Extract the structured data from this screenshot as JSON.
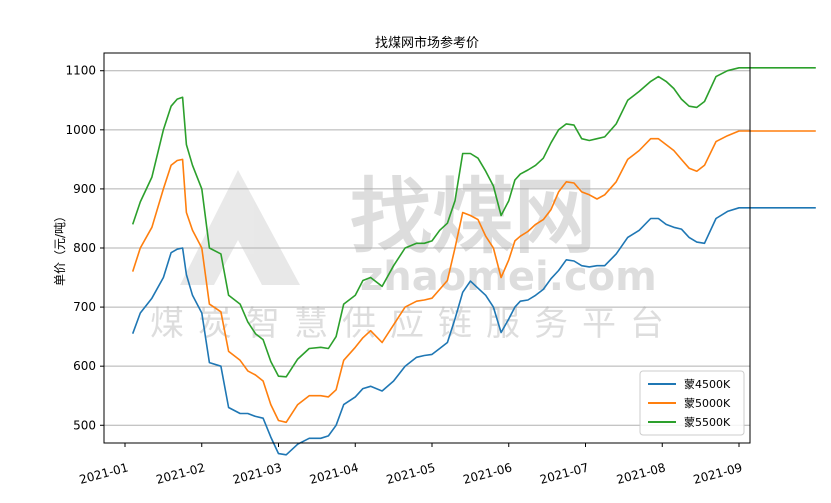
{
  "chart_data": {
    "type": "line",
    "title": "找煤网市场参考价",
    "xlabel": "",
    "ylabel": "单价（元/吨）",
    "ylim": [
      470,
      1130
    ],
    "yticks": [
      500,
      600,
      700,
      800,
      900,
      1000,
      1100
    ],
    "xticks": [
      "2021-01",
      "2021-02",
      "2021-03",
      "2021-04",
      "2021-05",
      "2021-06",
      "2021-07",
      "2021-08",
      "2021-09"
    ],
    "grid": "horizontal",
    "legend_position": "lower-right",
    "x": [
      0.1,
      0.2,
      0.35,
      0.5,
      0.6,
      0.68,
      0.75,
      0.8,
      0.88,
      1.0,
      1.1,
      1.25,
      1.35,
      1.5,
      1.6,
      1.7,
      1.8,
      1.9,
      2.0,
      2.1,
      2.25,
      2.4,
      2.55,
      2.65,
      2.75,
      2.85,
      3.0,
      3.1,
      3.2,
      3.35,
      3.5,
      3.65,
      3.8,
      3.9,
      4.0,
      4.1,
      4.2,
      4.3,
      4.4,
      4.5,
      4.6,
      4.7,
      4.8,
      4.9,
      5.0,
      5.08,
      5.15,
      5.25,
      5.35,
      5.45,
      5.55,
      5.65,
      5.75,
      5.85,
      5.95,
      6.05,
      6.15,
      6.25,
      6.4,
      6.55,
      6.7,
      6.85,
      6.95,
      7.05,
      7.15,
      7.25,
      7.35,
      7.45,
      7.55,
      7.7,
      7.85,
      8.0,
      8.1,
      8.2,
      8.35,
      8.45,
      8.55,
      8.7,
      8.8,
      8.9,
      9.0
    ],
    "series": [
      {
        "name": "蒙4500K",
        "color": "#1f77b4",
        "values": [
          655,
          690,
          715,
          750,
          792,
          798,
          800,
          755,
          720,
          690,
          606,
          600,
          530,
          520,
          520,
          515,
          512,
          480,
          452,
          450,
          468,
          478,
          478,
          482,
          500,
          535,
          548,
          562,
          566,
          558,
          575,
          600,
          615,
          618,
          620,
          630,
          640,
          680,
          725,
          744,
          732,
          720,
          700,
          657,
          680,
          700,
          710,
          712,
          720,
          730,
          748,
          762,
          780,
          778,
          770,
          768,
          770,
          770,
          790,
          818,
          830,
          850,
          850,
          840,
          835,
          832,
          818,
          810,
          808,
          850,
          862,
          868,
          868,
          868,
          868,
          868,
          868,
          868,
          868,
          868,
          868
        ]
      },
      {
        "name": "蒙5000K",
        "color": "#ff7f0e",
        "values": [
          760,
          800,
          835,
          900,
          940,
          948,
          950,
          860,
          830,
          800,
          705,
          692,
          625,
          610,
          592,
          585,
          575,
          535,
          508,
          505,
          535,
          550,
          550,
          548,
          560,
          610,
          632,
          648,
          660,
          640,
          670,
          700,
          710,
          712,
          715,
          730,
          745,
          800,
          860,
          855,
          848,
          820,
          800,
          750,
          780,
          812,
          820,
          828,
          840,
          848,
          865,
          895,
          912,
          910,
          895,
          890,
          883,
          890,
          912,
          950,
          965,
          985,
          985,
          975,
          965,
          950,
          935,
          930,
          940,
          980,
          990,
          998,
          998,
          998,
          998,
          998,
          998,
          998,
          998,
          998,
          998
        ]
      },
      {
        "name": "蒙5500K",
        "color": "#2ca02c",
        "values": [
          840,
          878,
          920,
          1000,
          1040,
          1052,
          1055,
          975,
          940,
          900,
          800,
          790,
          720,
          705,
          675,
          655,
          645,
          608,
          583,
          582,
          612,
          630,
          632,
          630,
          650,
          705,
          720,
          745,
          750,
          735,
          770,
          800,
          808,
          808,
          812,
          830,
          842,
          880,
          960,
          960,
          952,
          930,
          905,
          855,
          880,
          915,
          925,
          932,
          940,
          952,
          978,
          1000,
          1010,
          1008,
          985,
          982,
          985,
          988,
          1010,
          1050,
          1065,
          1082,
          1090,
          1082,
          1070,
          1052,
          1040,
          1038,
          1048,
          1090,
          1100,
          1105,
          1105,
          1105,
          1105,
          1105,
          1105,
          1105,
          1105,
          1105,
          1105
        ]
      }
    ]
  },
  "watermark": {
    "big": "找煤网",
    "url": "zhaomei.com",
    "slogan": "煤炭智慧供应链服务平台"
  }
}
